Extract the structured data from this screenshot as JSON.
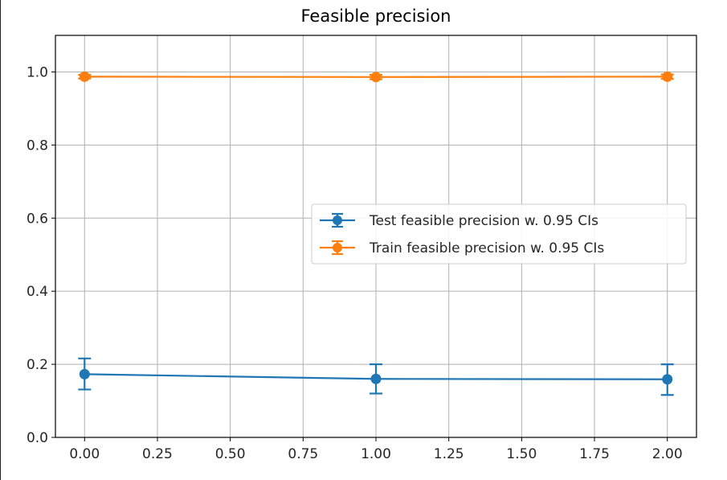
{
  "chart_data": {
    "type": "line",
    "title": "Feasible precision",
    "xlabel": "",
    "ylabel": "",
    "xlim": [
      -0.1,
      2.1
    ],
    "ylim": [
      0.0,
      1.1
    ],
    "x": [
      0.0,
      1.0,
      2.0
    ],
    "x_ticks": [
      0.0,
      0.25,
      0.5,
      0.75,
      1.0,
      1.25,
      1.5,
      1.75,
      2.0
    ],
    "x_tick_labels": [
      "0.00",
      "0.25",
      "0.50",
      "0.75",
      "1.00",
      "1.25",
      "1.50",
      "1.75",
      "2.00"
    ],
    "y_ticks": [
      0.0,
      0.2,
      0.4,
      0.6,
      0.8,
      1.0
    ],
    "y_tick_labels": [
      "0.0",
      "0.2",
      "0.4",
      "0.6",
      "0.8",
      "1.0"
    ],
    "grid": true,
    "legend_position": "center-right",
    "series": [
      {
        "name": "Test feasible precision w. 0.95 CIs",
        "color": "#1f77b4",
        "values": [
          0.173,
          0.16,
          0.159
        ],
        "err_low": [
          0.131,
          0.12,
          0.116
        ],
        "err_high": [
          0.216,
          0.2,
          0.2
        ]
      },
      {
        "name": "Train feasible precision w. 0.95 CIs",
        "color": "#ff7f0e",
        "values": [
          0.987,
          0.986,
          0.987
        ],
        "err_low": [
          0.982,
          0.98,
          0.981
        ],
        "err_high": [
          0.992,
          0.992,
          0.993
        ]
      }
    ]
  }
}
